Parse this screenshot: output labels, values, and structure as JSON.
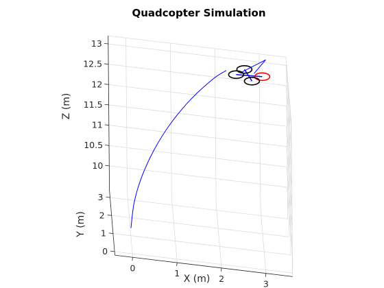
{
  "figure": {
    "background": "#ffffff"
  },
  "chart_data": {
    "type": "line",
    "projection": "3d",
    "title": "Quadcopter Simulation",
    "xlabel": "X (m)",
    "ylabel": "Y (m)",
    "zlabel": "Z (m)",
    "xlim": [
      -0.4,
      3.6
    ],
    "ylim": [
      -0.2,
      3.4
    ],
    "zlim": [
      9.4,
      13.2
    ],
    "x_ticks": [
      0,
      1,
      2,
      3
    ],
    "y_ticks": [
      0,
      1,
      2,
      3
    ],
    "z_ticks": [
      10,
      10.5,
      11,
      11.5,
      12,
      12.5,
      13
    ],
    "x_tick_labels": [
      "0",
      "1",
      "2",
      "3"
    ],
    "y_tick_labels": [
      "0",
      "1",
      "2",
      "3"
    ],
    "z_tick_labels": [
      "10",
      "10.5",
      "11",
      "11.5",
      "12",
      "12.5",
      "13"
    ],
    "grid": true,
    "series": [
      {
        "color": "#0000ff",
        "points": [
          [
            0.0,
            0.86,
            9.65
          ],
          [
            0.08,
            0.95,
            10.25
          ],
          [
            0.26,
            1.17,
            10.8
          ],
          [
            0.55,
            1.5,
            11.35
          ],
          [
            0.94,
            1.95,
            11.85
          ],
          [
            1.42,
            2.48,
            12.28
          ],
          [
            1.95,
            3.02,
            12.62
          ],
          [
            2.25,
            3.25,
            12.76
          ]
        ]
      }
    ],
    "quadcopter": {
      "position": [
        2.75,
        3.25,
        12.7
      ],
      "arm_color": "#0000ff",
      "rotor_colors": [
        "#ff0000",
        "#000000",
        "#000000",
        "#000000"
      ]
    }
  }
}
